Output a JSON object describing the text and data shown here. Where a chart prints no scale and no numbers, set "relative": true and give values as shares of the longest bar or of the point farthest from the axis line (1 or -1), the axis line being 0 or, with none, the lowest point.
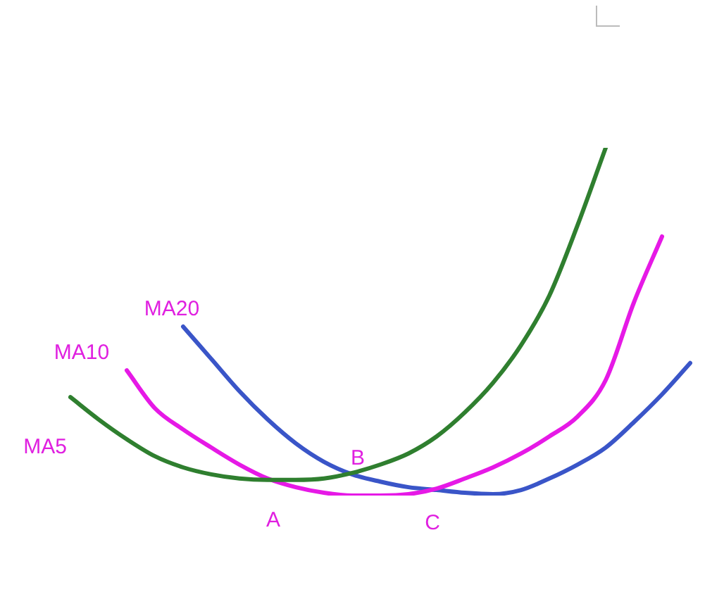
{
  "chart_data": {
    "type": "line",
    "relative": true,
    "categories": [
      null,
      null,
      null,
      null,
      null,
      null,
      null,
      null,
      null,
      null,
      null,
      null,
      null,
      null,
      null,
      null,
      null,
      null,
      null,
      null,
      null,
      null,
      null
    ],
    "series": [
      {
        "name": "MA5",
        "color": "#2f7f2f",
        "values": [
          0.283,
          0.219,
          0.162,
          0.113,
          0.081,
          0.061,
          0.049,
          0.045,
          0.045,
          0.049,
          0.065,
          0.089,
          0.121,
          0.17,
          0.239,
          0.324,
          0.433,
          0.575,
          0.777,
          1,
          null,
          null,
          null
        ]
      },
      {
        "name": "MA10",
        "color": "#e619e6",
        "values": [
          null,
          null,
          0.36,
          0.251,
          0.19,
          0.138,
          0.089,
          0.049,
          0.024,
          0.008,
          0,
          0,
          0.004,
          0.02,
          0.049,
          0.081,
          0.121,
          0.17,
          0.227,
          0.332,
          0.555,
          0.745,
          null
        ]
      },
      {
        "name": "MA20",
        "color": "#3a55c8",
        "values": [
          null,
          null,
          null,
          null,
          0.486,
          0.393,
          0.3,
          0.219,
          0.15,
          0.097,
          0.061,
          0.04,
          0.024,
          0.016,
          0.008,
          0.004,
          0.016,
          0.049,
          0.089,
          0.138,
          0.211,
          0.291,
          0.381
        ]
      }
    ],
    "annotations": [
      "A",
      "B",
      "C"
    ],
    "grid": false,
    "legend": false,
    "marker": "none",
    "line_style": "solid"
  }
}
